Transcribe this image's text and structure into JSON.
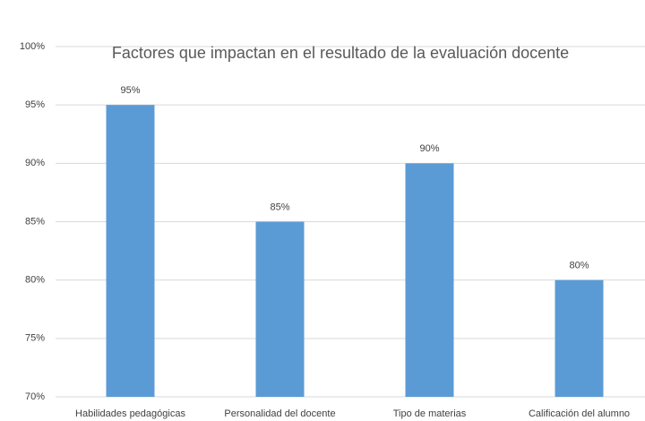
{
  "chart_data": {
    "type": "bar",
    "title": "Factores que impactan en el resultado de la evaluación docente",
    "categories": [
      "Habilidades pedagógicas",
      "Personalidad del docente",
      "Tipo de materias",
      "Calificación del alumno"
    ],
    "values": [
      95,
      85,
      90,
      80
    ],
    "value_labels": [
      "95%",
      "85%",
      "90%",
      "80%"
    ],
    "color": "#5b9bd5",
    "ylim": [
      70,
      100
    ],
    "yticks": [
      {
        "value": 70,
        "label": "70%"
      },
      {
        "value": 75,
        "label": "75%"
      },
      {
        "value": 80,
        "label": "80%"
      },
      {
        "value": 85,
        "label": "85%"
      },
      {
        "value": 90,
        "label": "90%"
      },
      {
        "value": 95,
        "label": "95%"
      },
      {
        "value": 100,
        "label": "100%"
      }
    ],
    "grid": true
  }
}
